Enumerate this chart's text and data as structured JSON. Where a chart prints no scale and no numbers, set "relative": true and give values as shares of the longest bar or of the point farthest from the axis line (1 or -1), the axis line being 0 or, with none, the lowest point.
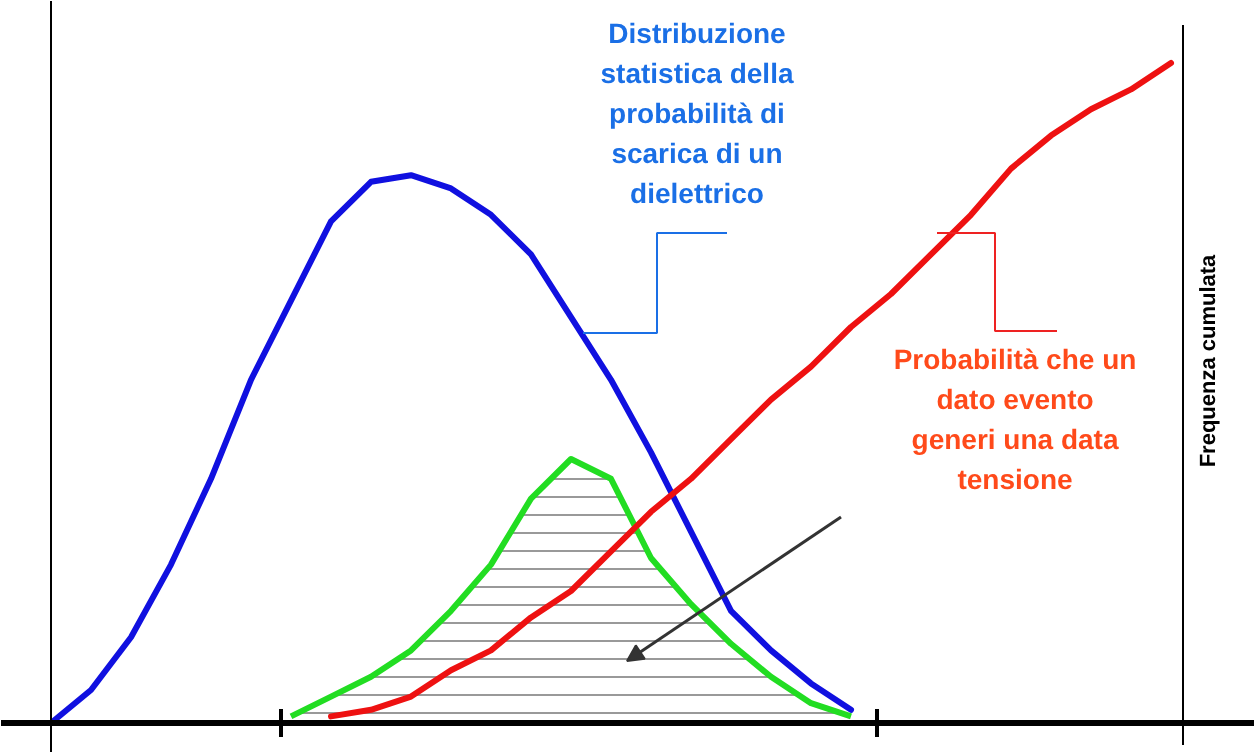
{
  "chart_data": {
    "type": "line",
    "relative": true,
    "ylabel": "Frequenza cumulata",
    "categories": [
      null,
      null,
      null,
      null,
      null,
      null,
      null,
      null,
      null,
      null,
      null,
      null,
      null,
      null,
      null,
      null,
      null,
      null,
      null,
      null,
      null,
      null,
      null,
      null,
      null,
      null,
      null,
      null,
      null,
      null
    ],
    "series": [
      {
        "color": "#1010e0",
        "values": [
          0,
          0.05,
          0.13,
          0.24,
          0.37,
          0.52,
          0.64,
          0.76,
          0.82,
          0.83,
          0.81,
          0.77,
          0.71,
          0.615,
          0.52,
          0.41,
          0.29,
          0.17,
          0.11,
          0.06,
          0.02,
          null,
          null,
          null,
          null,
          null,
          null,
          null,
          null,
          null
        ]
      },
      {
        "type": "area",
        "color": "#22dd22",
        "values": [
          null,
          null,
          null,
          null,
          null,
          null,
          0.01,
          0.04,
          0.07,
          0.11,
          0.17,
          0.24,
          0.34,
          0.4,
          0.37,
          0.25,
          0.18,
          0.12,
          0.07,
          0.03,
          0.01,
          null,
          null,
          null,
          null,
          null,
          null,
          null,
          null,
          null
        ]
      },
      {
        "color": "#ee1111",
        "values": [
          null,
          null,
          null,
          null,
          null,
          null,
          null,
          0.01,
          0.02,
          0.04,
          0.08,
          0.11,
          0.16,
          0.2,
          0.26,
          0.32,
          0.37,
          0.43,
          0.49,
          0.54,
          0.6,
          0.65,
          0.71,
          0.77,
          0.84,
          0.89,
          0.93,
          0.96,
          1.0,
          null
        ]
      }
    ],
    "annotations": [
      "Distribuzione\nstatistica della\nprobabilità di\nscarica di un\ndielettrico",
      "Probabilità che un\ndato evento\ngeneri una data\ntensione"
    ],
    "grid": false
  }
}
